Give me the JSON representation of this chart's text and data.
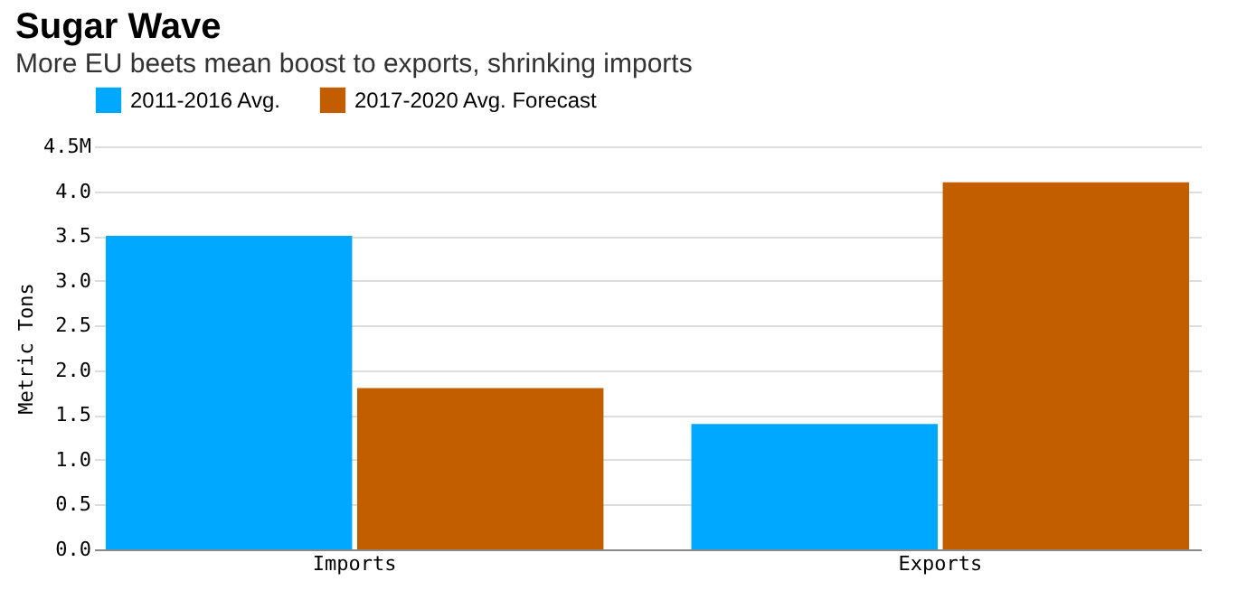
{
  "chart_data": {
    "type": "bar",
    "title": "Sugar Wave",
    "subtitle": "More EU beets mean boost to exports, shrinking imports",
    "ylabel": "Metric Tons",
    "categories": [
      "Imports",
      "Exports"
    ],
    "series": [
      {
        "name": "2011-2016 Avg.",
        "color": "#00a8ff",
        "values": [
          3.5,
          1.4
        ]
      },
      {
        "name": "2017-2020 Avg. Forecast",
        "color": "#c25e00",
        "values": [
          1.8,
          4.1
        ]
      }
    ],
    "ylim": [
      0,
      4.5
    ],
    "yticks": [
      {
        "value": 0,
        "label": "0.0"
      },
      {
        "value": 0.5,
        "label": "0.5"
      },
      {
        "value": 1,
        "label": "1.0"
      },
      {
        "value": 1.5,
        "label": "1.5"
      },
      {
        "value": 2,
        "label": "2.0"
      },
      {
        "value": 2.5,
        "label": "2.5"
      },
      {
        "value": 3,
        "label": "3.0"
      },
      {
        "value": 3.5,
        "label": "3.5"
      },
      {
        "value": 4,
        "label": "4.0"
      },
      {
        "value": 4.5,
        "label": "4.5M"
      }
    ],
    "grid": "y",
    "legend": "top left"
  }
}
